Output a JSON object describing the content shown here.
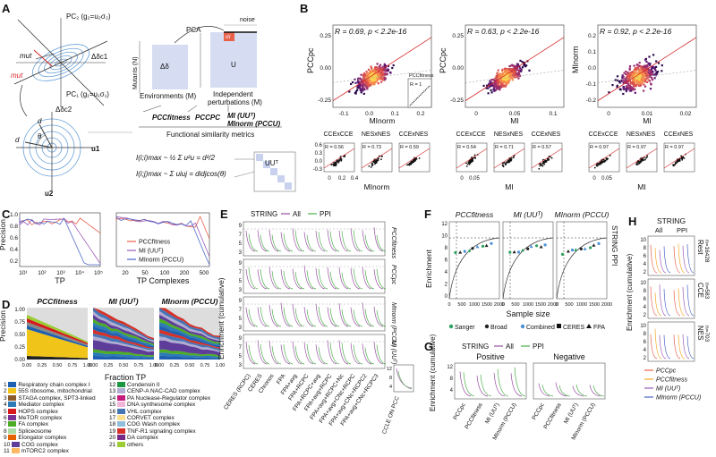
{
  "panels": {
    "A": {
      "label": "A",
      "pc2_label": "PC",
      "pc2_sub": "2",
      "pc2_eq": "(g",
      "pc2_eq2": "=u",
      "pc2_eq3": "σ",
      "pc2_eq_full": "PC₂ (g₂=u₂σ₂)",
      "pc1_eq_full": "PC₁ (g₁=u₁σ₁)",
      "delta_c1": "Δδc1",
      "delta_c2": "Δδc2",
      "mut_i": "mut",
      "mut_j": "mut",
      "d_i": "d",
      "d_j": "d",
      "theta": "θ",
      "u1": "u1",
      "u2": "u2",
      "pca": "PCA",
      "noise": "noise",
      "sigma_i": "σi",
      "mutants": "Mutants (N)",
      "delta": "Δδ",
      "U": "U",
      "environments": "Environments (M)",
      "independent": "Independent",
      "perturbations": "perturbations (M)",
      "pcc_fitness": "PCCfitness",
      "pcc_pc": "PCCPC",
      "mi_uut": "MI (UUᵀ)",
      "mi_norm": "MInorm (PCCU)",
      "functional": "Functional similarity metrics",
      "eq1": "I(i;i)max ~ ½ Σ u²u = d²/2",
      "eq2": "I(i;j)max ~ Σ uiuj = didjcos(θ)",
      "uut": "UUᵀ"
    },
    "B": {
      "label": "B",
      "plots": [
        {
          "r_text": "R = 0.69,  p < 2.2e-16",
          "ylabel": "PCCpc",
          "xlabel": "MInorm",
          "xticks": [
            "-0.1",
            "0.0",
            "0.1",
            "0.2"
          ],
          "yticks": [
            "0.25",
            "0.00",
            "-0.25"
          ]
        },
        {
          "r_text": "R = 0.63,  p < 2.2e-16",
          "ylabel": "PCCpc",
          "xlabel": "MI",
          "xticks": [
            "0",
            "0.05",
            "0.1"
          ],
          "yticks": [
            "0.25",
            "0.00",
            "-0.25"
          ]
        },
        {
          "r_text": "R = 0.92,  p < 2.2e-16",
          "ylabel": "MInorm",
          "xlabel": "MI",
          "xticks": [
            "0",
            "0.01",
            "0.02"
          ],
          "yticks": [
            "0.2",
            "0.1",
            "0.0",
            "-0.1",
            "-0.2"
          ]
        }
      ],
      "inset_label": "PCCfitness",
      "inset_r": "R = 1",
      "sub_groups": [
        {
          "labels": [
            "CCExCCE",
            "NESxNES",
            "CCExNES"
          ],
          "rs": [
            "R = 0.56",
            "R = 0.73",
            "R = 0.59"
          ],
          "xlabel": "MInorm",
          "xticks": [
            "0",
            "0.2",
            "0.4"
          ]
        },
        {
          "labels": [
            "CCExCCE",
            "NESxNES",
            "CCExNES"
          ],
          "rs": [
            "R = 0.54",
            "R = 0.71",
            "R = 0.57"
          ],
          "xlabel": "MI",
          "xticks": [
            "0",
            "0.05"
          ]
        },
        {
          "labels": [
            "CCExCCE",
            "NESxNES",
            "CCExNES"
          ],
          "rs": [
            "R = 0.97",
            "R = 0.97",
            "R = 0.97"
          ],
          "xlabel": "MI",
          "xticks": [
            "0",
            "0.05"
          ]
        }
      ],
      "sub_yticks": [
        "0.6",
        "0.3",
        "0.0",
        "-0.3"
      ]
    },
    "C": {
      "label": "C",
      "ylabel": "Precision",
      "xlabel_left": "TP",
      "xlabel_right": "TP Complexes",
      "yticks": [
        "1.0",
        "0.8",
        "0.6",
        "0.4",
        "0.2"
      ],
      "xticks_left": [
        "10¹",
        "10²",
        "10³",
        "10⁴",
        "10⁵"
      ],
      "xticks_right": [
        "20",
        "50",
        "100",
        "200",
        "500"
      ],
      "legend": [
        "PCCfitness",
        "MI (UUᵀ)",
        "MInorm (PCCU)"
      ],
      "colors": [
        "#e8604a",
        "#9b59b6",
        "#4a66c8"
      ]
    },
    "D": {
      "label": "D",
      "titles": [
        "PCCfitness",
        "MI (UUᵀ)",
        "MInorm (PCCU)"
      ],
      "ylabel": "Precision",
      "xlabel": "Fraction TP",
      "xticks": [
        "0.00",
        "0.25",
        "0.50",
        "0.75",
        "1.00"
      ],
      "yticks": [
        "1.00",
        "0.75",
        "0.50",
        "0.25",
        "0.00"
      ],
      "legend": [
        {
          "n": "1",
          "name": "Respiratory chain complex I",
          "color": "#1f5fb0"
        },
        {
          "n": "2",
          "name": "55S ribosome, mitochondrial",
          "color": "#f0c419"
        },
        {
          "n": "3",
          "name": "STAGA complex, SPT3-linked",
          "color": "#8b5a2b"
        },
        {
          "n": "4",
          "name": "Mediator complex",
          "color": "#2c7bb6"
        },
        {
          "n": "5",
          "name": "HOPS complex",
          "color": "#d7191c"
        },
        {
          "n": "6",
          "name": "MeTOR complex",
          "color": "#7b3294"
        },
        {
          "n": "7",
          "name": "FA complex",
          "color": "#4dac26"
        },
        {
          "n": "8",
          "name": "Spliceosome",
          "color": "#abdda4"
        },
        {
          "n": "9",
          "name": "Elongator complex",
          "color": "#e66101"
        },
        {
          "n": "10",
          "name": "COG complex",
          "color": "#5e3c99"
        },
        {
          "n": "11",
          "name": "mTORC2 complex",
          "color": "#fdb863"
        },
        {
          "n": "12",
          "name": "Condensin II",
          "color": "#1a9641"
        },
        {
          "n": "13",
          "name": "CENP-A NAC-CAD complex",
          "color": "#b2abd2"
        },
        {
          "n": "14",
          "name": "PA Nuclease-Regulator complex",
          "color": "#c51b7d"
        },
        {
          "n": "15",
          "name": "DNA synthesome complex",
          "color": "#f1b6da"
        },
        {
          "n": "16",
          "name": "VHL complex",
          "color": "#4575b4"
        },
        {
          "n": "17",
          "name": "CORVET complex",
          "color": "#fee090"
        },
        {
          "n": "18",
          "name": "COG Wash complex",
          "color": "#91bfdb"
        },
        {
          "n": "19",
          "name": "TNF-R1 signaling complex",
          "color": "#d73027"
        },
        {
          "n": "20",
          "name": "DA complex",
          "color": "#762a83"
        },
        {
          "n": "21",
          "name": "others",
          "color": "#9acd32"
        }
      ]
    },
    "E": {
      "label": "E",
      "legend_title": "STRING",
      "legend_all": "All",
      "legend_ppi": "PPI",
      "ylabel": "Enrichment (cumulative)",
      "row_labels": [
        "PCCfitness",
        "PCCpc",
        "MInorm (PCCU)",
        "MI (UUᵀ)"
      ],
      "yticks": [
        "9",
        "7",
        "5",
        "3"
      ],
      "categories": [
        "CERES (RCPC)",
        "CERES",
        "Chronos",
        "FPA",
        "FPA+avg",
        "FPA+RCPC",
        "FPA+RCPC+avg",
        "FPA+avg+RCPC",
        "FPA+avg+RCPC+Nc",
        "FPA+avg+CNc+RCPC",
        "FPA+avg+CNc+RCPC2",
        "FPA+avg+CNc+RCPC3"
      ],
      "extra_label": "CCLE ON PCC",
      "extra_yticks": [
        "12",
        "8",
        "4"
      ]
    },
    "F": {
      "label": "F",
      "titles": [
        "PCCfitness",
        "MI (UUᵀ)",
        "MInorm (PCCU)"
      ],
      "ylabel": "Enrichment",
      "xlabel": "Sample size",
      "side_label": "STRING PPI",
      "yticks": [
        "12",
        "10",
        "8",
        "6",
        "4",
        "2",
        "0"
      ],
      "xticks": [
        "0",
        "500",
        "1000",
        "1500",
        "2000"
      ],
      "legend_dots": [
        "Sanger",
        "Broad",
        "Combined"
      ],
      "legend_shapes": [
        "CERES",
        "FPA"
      ],
      "dot_colors": [
        "#2ca25f",
        "#222222",
        "#4a90d9"
      ]
    },
    "G": {
      "label": "G",
      "legend_title": "STRING",
      "legend_all": "All",
      "legend_ppi": "PPI",
      "ylabel": "Enrichment (cumulative)",
      "positive": "Positive",
      "negative": "Negative",
      "yticks": [
        "12",
        "8",
        "4"
      ],
      "categories": [
        "PCCpc",
        "PCCfitness",
        "MI (UUᵀ)",
        "MInorm (PCCU)"
      ]
    },
    "H": {
      "label": "H",
      "legend_title": "STRING",
      "col_all": "All",
      "col_ppi": "PPI",
      "ylabel": "Enrichment (cumulative)",
      "rows": [
        {
          "name": "Rest",
          "n": "n=16428"
        },
        {
          "name": "CCE",
          "n": "n=583"
        },
        {
          "name": "NES",
          "n": "n=703"
        }
      ],
      "yticks": [
        "10",
        "8",
        "6",
        "4",
        "2"
      ],
      "legend": [
        {
          "name": "PCCpc",
          "color": "#e8604a"
        },
        {
          "name": "PCCfitness",
          "color": "#f5a623"
        },
        {
          "name": "MI (UUᵀ)",
          "color": "#9b59b6"
        },
        {
          "name": "MInorm (PCCU)",
          "color": "#4a66c8"
        }
      ]
    }
  },
  "colors": {
    "red": "#d62728",
    "purple": "#8e44ad",
    "green": "#2ca02c",
    "orange": "#f39c12",
    "blue": "#3b6fd8",
    "grey": "#bbbbbb",
    "ppi": "#4daf4a",
    "all": "#984ea3"
  }
}
